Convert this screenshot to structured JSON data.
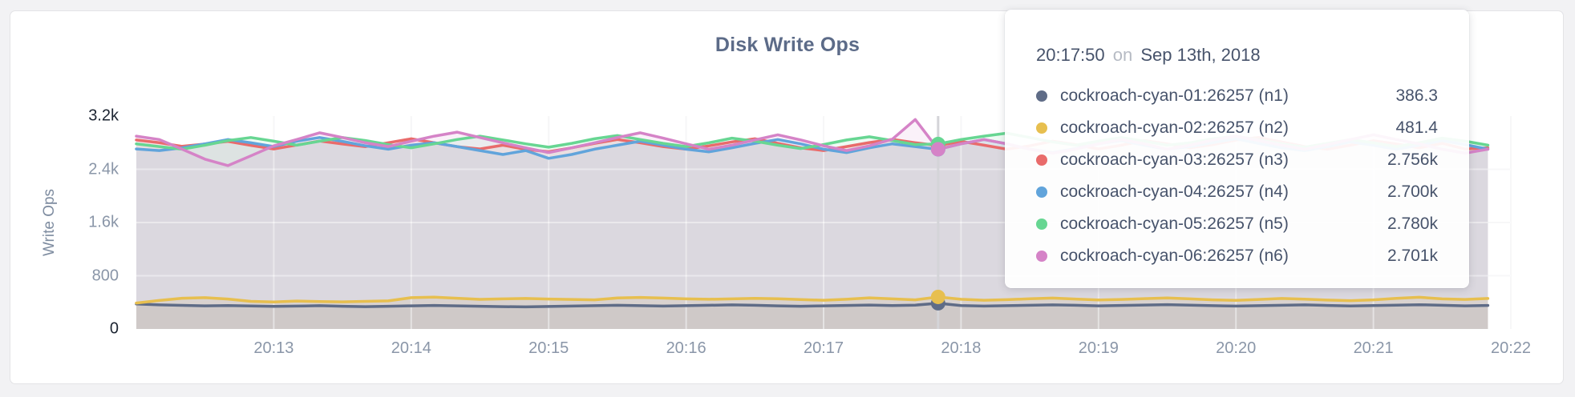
{
  "ui_colors": {
    "page_background": "#f2f2f4",
    "card_background": "#ffffff",
    "card_border": "#e3e3e6",
    "title_color": "#5c6b88",
    "axis_tick_color": "#8a96a8",
    "axis_tick_emphasis_color": "#1c2431",
    "gridline_color": "#ededf0",
    "hover_guideline_color": "#d4d4d8",
    "tooltip_text_color": "#47536b",
    "tooltip_muted_color": "#b6bbc4"
  },
  "chart": {
    "title": "Disk Write Ops",
    "y_axis_label": "Write Ops"
  },
  "tooltip": {
    "time": "20:17:50",
    "separator": "on",
    "date": "Sep 13th, 2018",
    "rows": [
      {
        "color": "#5F6C87",
        "label": "cockroach-cyan-01:26257 (n1)",
        "value": "386.3"
      },
      {
        "color": "#E7BF4F",
        "label": "cockroach-cyan-02:26257 (n2)",
        "value": "481.4"
      },
      {
        "color": "#E96B6B",
        "label": "cockroach-cyan-03:26257 (n3)",
        "value": "2.756k"
      },
      {
        "color": "#61A4DB",
        "label": "cockroach-cyan-04:26257 (n4)",
        "value": "2.700k"
      },
      {
        "color": "#67D692",
        "label": "cockroach-cyan-05:26257 (n5)",
        "value": "2.780k"
      },
      {
        "color": "#D583C7",
        "label": "cockroach-cyan-06:26257 (n6)",
        "value": "2.701k"
      }
    ]
  },
  "chart_data": {
    "type": "line",
    "title": "Disk Write Ops",
    "ylabel": "Write Ops",
    "xlabel": "",
    "ylim": [
      0,
      3200
    ],
    "grid": true,
    "x_start_time": "20:12:00",
    "x_end_time": "20:22:00",
    "x_interval_seconds": 10,
    "x_tick_labels": [
      "20:13",
      "20:14",
      "20:15",
      "20:16",
      "20:17",
      "20:18",
      "20:19",
      "20:20",
      "20:21",
      "20:22"
    ],
    "y_ticks": [
      {
        "label": "3.2k",
        "value": 3200,
        "emphasis": true
      },
      {
        "label": "2.4k",
        "value": 2400,
        "emphasis": false
      },
      {
        "label": "1.6k",
        "value": 1600,
        "emphasis": false
      },
      {
        "label": "800",
        "value": 800,
        "emphasis": false
      },
      {
        "label": "0",
        "value": 0,
        "emphasis": true
      }
    ],
    "hover_index": 35,
    "hover_time": "20:17:50",
    "series": [
      {
        "name": "cockroach-cyan-01:26257 (n1)",
        "color": "#5F6C87",
        "hover_value": 386.3,
        "values": [
          375,
          362,
          355,
          348,
          352,
          346,
          340,
          344,
          350,
          342,
          336,
          342,
          348,
          354,
          348,
          342,
          336,
          332,
          338,
          344,
          350,
          356,
          350,
          344,
          350,
          356,
          362,
          356,
          348,
          342,
          348,
          354,
          360,
          352,
          358,
          386.3,
          352,
          344,
          350,
          356,
          362,
          356,
          348,
          354,
          360,
          366,
          358,
          350,
          344,
          350,
          356,
          362,
          354,
          346,
          352,
          358,
          364,
          356,
          348,
          354
        ]
      },
      {
        "name": "cockroach-cyan-02:26257 (n2)",
        "color": "#E7BF4F",
        "hover_value": 481.4,
        "values": [
          390,
          428,
          462,
          470,
          450,
          415,
          405,
          420,
          412,
          408,
          415,
          422,
          470,
          478,
          462,
          445,
          452,
          458,
          450,
          444,
          438,
          465,
          474,
          464,
          452,
          446,
          452,
          460,
          455,
          442,
          432,
          446,
          468,
          452,
          438,
          481.4,
          446,
          432,
          440,
          454,
          464,
          450,
          436,
          444,
          456,
          466,
          452,
          438,
          430,
          444,
          458,
          448,
          434,
          426,
          438,
          460,
          476,
          452,
          444,
          458
        ]
      },
      {
        "name": "cockroach-cyan-03:26257 (n3)",
        "color": "#E96B6B",
        "hover_value": 2756,
        "values": [
          2840,
          2800,
          2745,
          2780,
          2820,
          2760,
          2705,
          2765,
          2825,
          2780,
          2740,
          2800,
          2858,
          2798,
          2740,
          2705,
          2762,
          2700,
          2665,
          2722,
          2790,
          2848,
          2798,
          2742,
          2702,
          2752,
          2812,
          2858,
          2790,
          2722,
          2682,
          2742,
          2802,
          2850,
          2800,
          2756,
          2820,
          2762,
          2702,
          2752,
          2822,
          2772,
          2705,
          2762,
          2832,
          2782,
          2722,
          2772,
          2840,
          2878,
          2810,
          2742,
          2702,
          2762,
          2830,
          2780,
          2722,
          2790,
          2705,
          2722
        ]
      },
      {
        "name": "cockroach-cyan-04:26257 (n4)",
        "color": "#61A4DB",
        "hover_value": 2700,
        "values": [
          2705,
          2682,
          2722,
          2782,
          2848,
          2798,
          2742,
          2822,
          2878,
          2820,
          2752,
          2702,
          2762,
          2798,
          2742,
          2682,
          2622,
          2682,
          2565,
          2622,
          2702,
          2762,
          2822,
          2762,
          2702,
          2662,
          2722,
          2790,
          2848,
          2782,
          2702,
          2652,
          2722,
          2782,
          2742,
          2700,
          2782,
          2848,
          2782,
          2702,
          2652,
          2712,
          2782,
          2832,
          2762,
          2702,
          2742,
          2802,
          2858,
          2790,
          2722,
          2682,
          2742,
          2812,
          2762,
          2702,
          2762,
          2832,
          2772,
          2702
        ]
      },
      {
        "name": "cockroach-cyan-05:26257 (n5)",
        "color": "#67D692",
        "hover_value": 2780,
        "values": [
          2782,
          2742,
          2702,
          2762,
          2832,
          2878,
          2822,
          2762,
          2822,
          2878,
          2832,
          2772,
          2722,
          2782,
          2848,
          2898,
          2842,
          2782,
          2732,
          2790,
          2858,
          2908,
          2848,
          2790,
          2742,
          2798,
          2868,
          2822,
          2762,
          2712,
          2772,
          2840,
          2888,
          2832,
          2772,
          2780,
          2848,
          2898,
          2942,
          2878,
          2812,
          2762,
          2822,
          2878,
          2822,
          2762,
          2798,
          2858,
          2898,
          2842,
          2782,
          2732,
          2790,
          2848,
          2798,
          2742,
          2798,
          2868,
          2822,
          2762
        ]
      },
      {
        "name": "cockroach-cyan-06:26257 (n6)",
        "color": "#D583C7",
        "hover_value": 2701,
        "values": [
          2898,
          2848,
          2702,
          2552,
          2455,
          2602,
          2752,
          2848,
          2948,
          2878,
          2798,
          2742,
          2822,
          2898,
          2958,
          2878,
          2798,
          2722,
          2652,
          2722,
          2798,
          2878,
          2948,
          2868,
          2782,
          2702,
          2762,
          2842,
          2918,
          2842,
          2752,
          2682,
          2752,
          2852,
          3148,
          2701,
          2782,
          2848,
          2782,
          2702,
          2642,
          2702,
          2782,
          2848,
          2782,
          2702,
          2762,
          2842,
          2898,
          2832,
          2762,
          2702,
          2772,
          2848,
          2918,
          2848,
          2782,
          2702,
          2642,
          2702
        ]
      }
    ]
  }
}
